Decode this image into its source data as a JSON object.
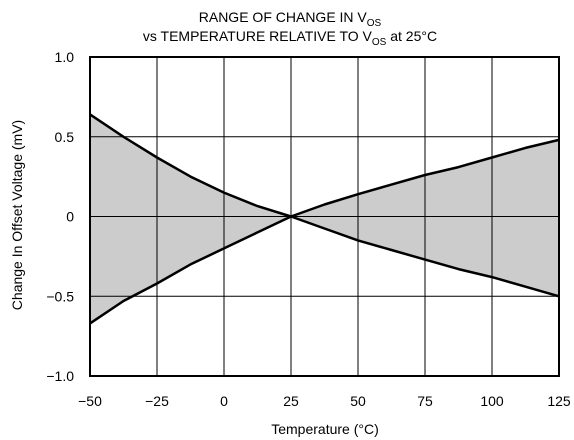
{
  "chart_data": {
    "type": "area",
    "title": {
      "line1": {
        "text": "RANGE OF CHANGE IN V",
        "sub": "OS",
        "after": ""
      },
      "line2": {
        "text": "vs TEMPERATURE RELATIVE TO V",
        "sub": "OS",
        "after": " at 25°C"
      }
    },
    "xlabel": "Temperature (°C)",
    "ylabel": "Change In Offset Voltage (mV)",
    "xlim": [
      -50,
      125
    ],
    "ylim": [
      -1.0,
      1.0
    ],
    "x_ticks": [
      -50,
      -25,
      0,
      25,
      50,
      75,
      100,
      125
    ],
    "x_tick_labels": [
      "−50",
      "−25",
      "0",
      "25",
      "50",
      "75",
      "100",
      "125"
    ],
    "y_ticks": [
      -1.0,
      -0.5,
      0,
      0.5,
      1.0
    ],
    "y_tick_labels": [
      "−1.0",
      "−0.5",
      "0",
      "0.5",
      "1.0"
    ],
    "grid": true,
    "fill_color": "#cccccc",
    "line_color": "#000000",
    "series": [
      {
        "x": [
          -50,
          -37.5,
          -25,
          -12.5,
          0,
          12.5,
          25,
          37.5,
          50,
          62.5,
          75,
          87.5,
          100,
          112.5,
          125
        ],
        "y": [
          0.64,
          0.5,
          0.37,
          0.25,
          0.15,
          0.065,
          0.0,
          -0.075,
          -0.15,
          -0.21,
          -0.27,
          -0.33,
          -0.38,
          -0.44,
          -0.5
        ]
      },
      {
        "x": [
          -50,
          -37.5,
          -25,
          -12.5,
          0,
          12.5,
          25,
          37.5,
          50,
          62.5,
          75,
          87.5,
          100,
          112.5,
          125
        ],
        "y": [
          -0.67,
          -0.53,
          -0.42,
          -0.3,
          -0.2,
          -0.1,
          0.0,
          0.075,
          0.14,
          0.2,
          0.26,
          0.31,
          0.37,
          0.43,
          0.48
        ]
      }
    ]
  }
}
